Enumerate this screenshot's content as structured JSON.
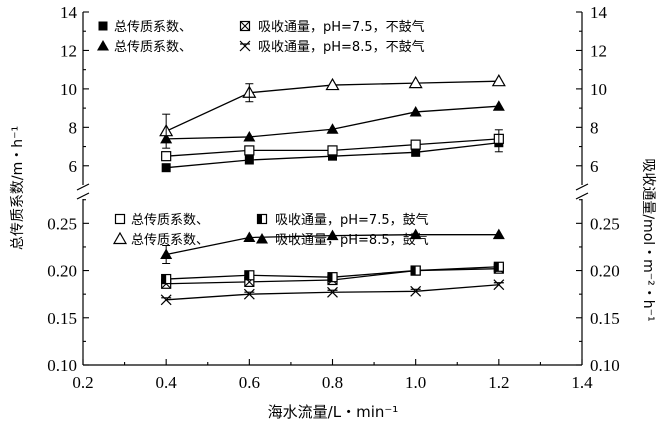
{
  "chart_data": {
    "type": "line",
    "x_label": "海水流量/L・min⁻¹",
    "y_left_label": "总传质系数/m・h⁻¹",
    "y_right_label": "吸收通量/mol・m⁻²・h⁻¹",
    "x_ticks": [
      "0.2",
      "0.4",
      "0.6",
      "0.8",
      "1.0",
      "1.2",
      "1.4"
    ],
    "xlim": [
      0.2,
      1.4
    ],
    "upper_panel": {
      "ylim": [
        5,
        14
      ],
      "left_ticks": [
        "6",
        "8",
        "10",
        "12",
        "14"
      ],
      "right_ticks": [
        "6",
        "8",
        "10",
        "12",
        "14"
      ],
      "legend": [
        {
          "text": "总传质系数、",
          "marker": "filled-square"
        },
        {
          "text": "吸收通量，pH=7.5，不鼓气",
          "marker": "boxed-x"
        },
        {
          "text": "总传质系数、",
          "marker": "filled-triangle"
        },
        {
          "text": "吸收通量，pH=8.5，不鼓气",
          "marker": "double-x"
        }
      ],
      "series": [
        {
          "marker": "filled-square",
          "x": [
            0.4,
            0.6,
            0.8,
            1.0,
            1.2
          ],
          "y": [
            5.9,
            6.3,
            6.5,
            6.7,
            7.2
          ]
        },
        {
          "marker": "open-square",
          "x": [
            0.4,
            0.6,
            0.8,
            1.0,
            1.2
          ],
          "y": [
            6.5,
            6.8,
            6.8,
            7.1,
            7.4
          ]
        },
        {
          "marker": "filled-triangle",
          "x": [
            0.4,
            0.6,
            0.8,
            1.0,
            1.2
          ],
          "y": [
            7.4,
            7.5,
            7.9,
            8.8,
            9.1
          ]
        },
        {
          "marker": "open-triangle",
          "x": [
            0.4,
            0.6,
            0.8,
            1.0,
            1.2
          ],
          "y": [
            7.8,
            9.8,
            10.2,
            10.3,
            10.4
          ]
        }
      ]
    },
    "lower_panel": {
      "ylim": [
        0.1,
        0.28
      ],
      "left_ticks": [
        "0.10",
        "0.15",
        "0.20",
        "0.25"
      ],
      "right_ticks": [
        "0.10",
        "0.15",
        "0.20",
        "0.25"
      ],
      "legend": [
        {
          "text": "总传质系数、",
          "marker": "open-square"
        },
        {
          "text": "吸收通量，pH=7.5，鼓气",
          "marker": "half-square"
        },
        {
          "text": "总传质系数、",
          "marker": "open-triangle"
        },
        {
          "text": "吸收通量，pH=8.5，鼓气",
          "marker": "filled-triangle"
        }
      ],
      "series": [
        {
          "marker": "double-x",
          "x": [
            0.4,
            0.6,
            0.8,
            1.0,
            1.2
          ],
          "y": [
            0.169,
            0.175,
            0.177,
            0.178,
            0.185
          ]
        },
        {
          "marker": "boxed-x",
          "x": [
            0.4,
            0.6,
            0.8,
            1.0,
            1.2
          ],
          "y": [
            0.186,
            0.188,
            0.19,
            0.2,
            0.202
          ]
        },
        {
          "marker": "half-square",
          "x": [
            0.4,
            0.6,
            0.8,
            1.0,
            1.2
          ],
          "y": [
            0.191,
            0.195,
            0.193,
            0.2,
            0.204
          ]
        },
        {
          "marker": "filled-triangle",
          "x": [
            0.4,
            0.6,
            0.8,
            1.0,
            1.2
          ],
          "y": [
            0.217,
            0.235,
            0.237,
            0.238,
            0.238
          ]
        }
      ]
    }
  }
}
